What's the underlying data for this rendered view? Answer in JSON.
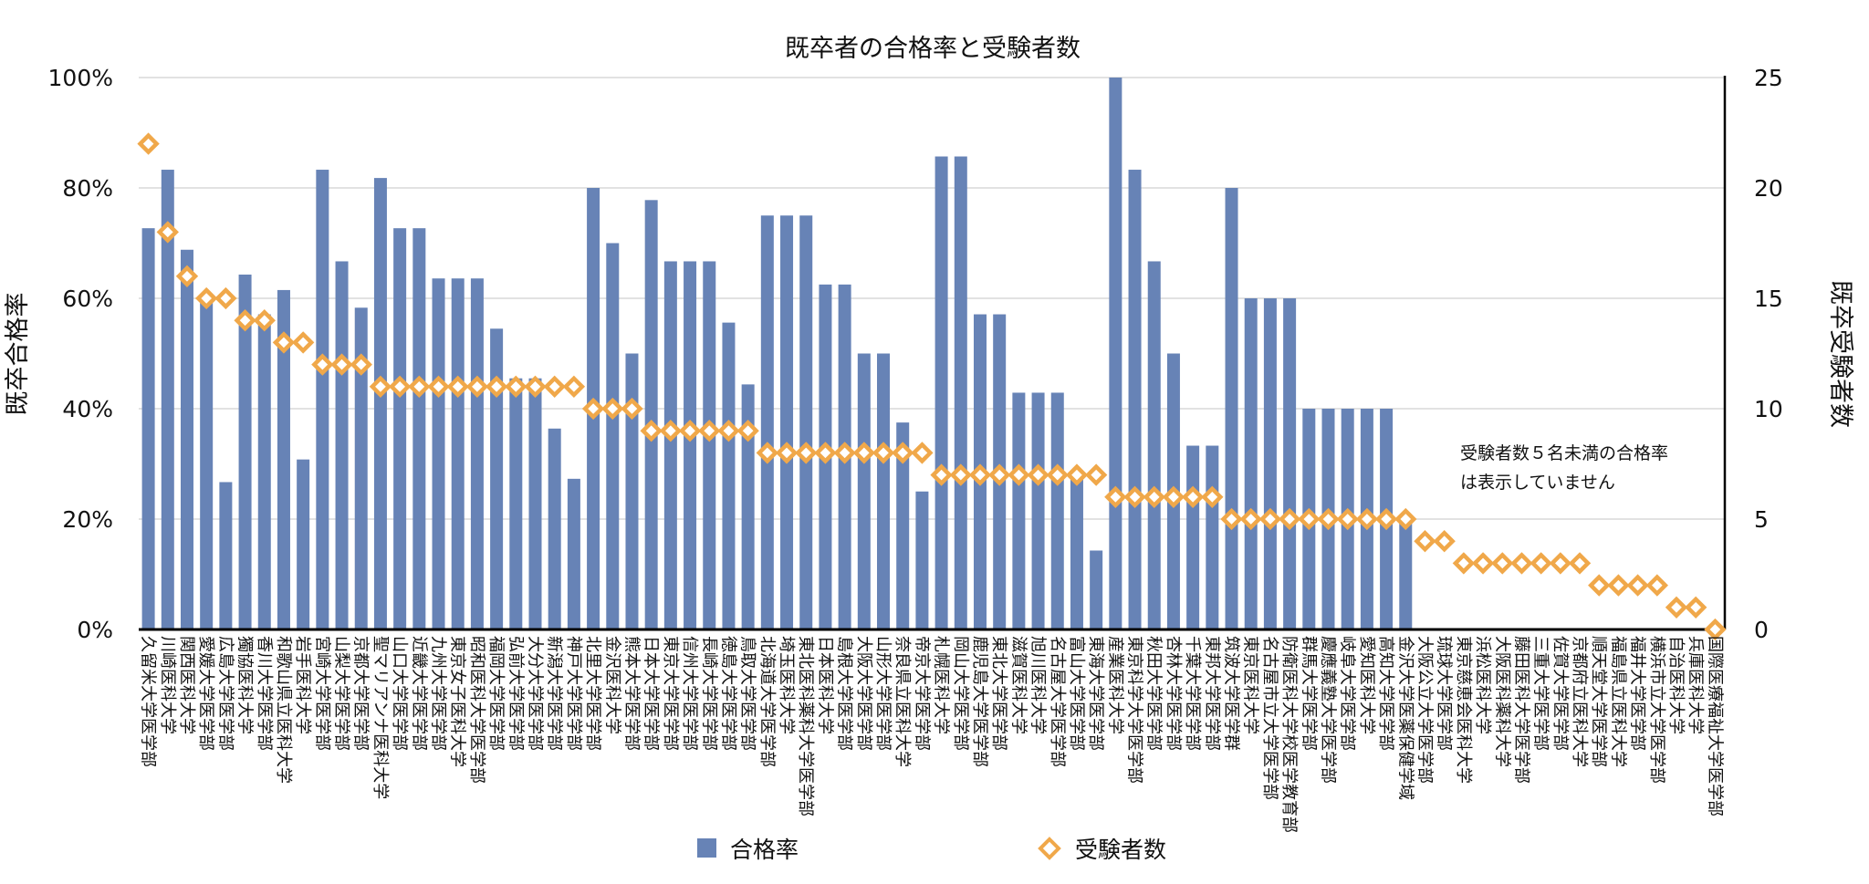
{
  "chart_data": {
    "type": "bar+scatter",
    "title": "既卒者の合格率と受験者数",
    "ylabel_left": "既卒合格率",
    "ylabel_right": "既卒受験者数",
    "ylim_left": [
      0,
      100
    ],
    "ylim_right": [
      0,
      25
    ],
    "left_ticks": [
      "0%",
      "20%",
      "40%",
      "60%",
      "80%",
      "100%"
    ],
    "right_ticks": [
      "0",
      "5",
      "10",
      "15",
      "20",
      "25"
    ],
    "grid": true,
    "legend_position": "bottom",
    "annotation": [
      "受験者数５名未満の合格率",
      "は表示していません"
    ],
    "colors": {
      "bar": "#6783b6",
      "marker": "#f0a84a",
      "grid": "#d9d9d9",
      "axis": "#000000"
    },
    "categories": [
      "久留米大学医学部",
      "川崎医科大学",
      "関西医科大学",
      "愛媛大学医学部",
      "広島大学医学部",
      "獨協医科大学",
      "香川大学医学部",
      "和歌山県立医科大学",
      "岩手医科大学",
      "宮崎大学医学部",
      "山梨大学医学部",
      "京都大学医学部",
      "聖マリアンナ医科大学",
      "山口大学医学部",
      "近畿大学医学部",
      "九州大学医学部",
      "東京女子医科大学",
      "昭和医科大学医学部",
      "福岡大学医学部",
      "弘前大学医学部",
      "大分大学医学部",
      "新潟大学医学部",
      "神戸大学医学部",
      "北里大学医学部",
      "金沢医科大学",
      "熊本大学医学部",
      "日本大学医学部",
      "東京大学医学部",
      "信州大学医学部",
      "長崎大学医学部",
      "徳島大学医学部",
      "鳥取大学医学部",
      "北海道大学医学部",
      "埼玉医科大学",
      "東北医科薬科大学医学部",
      "日本医科大学",
      "島根大学医学部",
      "大阪大学医学部",
      "山形大学医学部",
      "奈良県立医科大学",
      "帝京大学医学部",
      "札幌医科大学",
      "岡山大学医学部",
      "鹿児島大学医学部",
      "東北大学医学部",
      "滋賀医科大学",
      "旭川医科大学",
      "名古屋大学医学部",
      "富山大学医学部",
      "東海大学医学部",
      "産業医科大学",
      "東京科学大学医学部",
      "秋田大学医学部",
      "杏林大学医学部",
      "千葉大学医学部",
      "東邦大学医学部",
      "筑波大学医学群",
      "東京医科大学",
      "名古屋市立大学医学部",
      "防衛医科大学校医学教育部",
      "群馬大学医学部",
      "慶應義塾大学医学部",
      "岐阜大学医学部",
      "愛知医科大学",
      "高知大学医学部",
      "金沢大学医薬保健学域",
      "大阪公立大学医学部",
      "琉球大学医学部",
      "東京慈恵会医科大学",
      "浜松医科大学",
      "大阪医科薬科大学",
      "藤田医科大学医学部",
      "三重大学医学部",
      "佐賀大学医学部",
      "京都府立医科大学",
      "順天堂大学医学部",
      "福島県立医科大学",
      "福井大学医学部",
      "横浜市立大学医学部",
      "自治医科大学",
      "兵庫医科大学",
      "国際医療福祉大学医学部"
    ],
    "series": [
      {
        "name": "合格率",
        "axis": "left",
        "kind": "bar",
        "values": [
          72.7,
          83.3,
          68.8,
          60.0,
          26.7,
          64.3,
          57.1,
          61.5,
          30.8,
          83.3,
          66.7,
          58.3,
          81.8,
          72.7,
          72.7,
          63.6,
          63.6,
          63.6,
          54.5,
          45.5,
          45.5,
          36.4,
          27.3,
          80.0,
          70.0,
          50.0,
          77.8,
          66.7,
          66.7,
          66.7,
          55.6,
          44.4,
          75.0,
          75.0,
          75.0,
          62.5,
          62.5,
          50.0,
          50.0,
          37.5,
          25.0,
          85.7,
          85.7,
          57.1,
          57.1,
          42.9,
          42.9,
          42.9,
          28.6,
          14.3,
          100.0,
          83.3,
          66.7,
          50.0,
          33.3,
          33.3,
          80.0,
          60.0,
          60.0,
          60.0,
          40.0,
          40.0,
          40.0,
          40.0,
          40.0,
          20.0,
          null,
          null,
          null,
          null,
          null,
          null,
          null,
          null,
          null,
          null,
          null,
          null,
          null,
          null,
          null,
          null
        ]
      },
      {
        "name": "受験者数",
        "axis": "right",
        "kind": "marker",
        "values": [
          22,
          18,
          16,
          15,
          15,
          14,
          14,
          13,
          13,
          12,
          12,
          12,
          11,
          11,
          11,
          11,
          11,
          11,
          11,
          11,
          11,
          11,
          11,
          10,
          10,
          10,
          9,
          9,
          9,
          9,
          9,
          9,
          8,
          8,
          8,
          8,
          8,
          8,
          8,
          8,
          8,
          7,
          7,
          7,
          7,
          7,
          7,
          7,
          7,
          7,
          6,
          6,
          6,
          6,
          6,
          6,
          5,
          5,
          5,
          5,
          5,
          5,
          5,
          5,
          5,
          5,
          4,
          4,
          3,
          3,
          3,
          3,
          3,
          3,
          3,
          2,
          2,
          2,
          2,
          1,
          1,
          0
        ]
      }
    ]
  }
}
